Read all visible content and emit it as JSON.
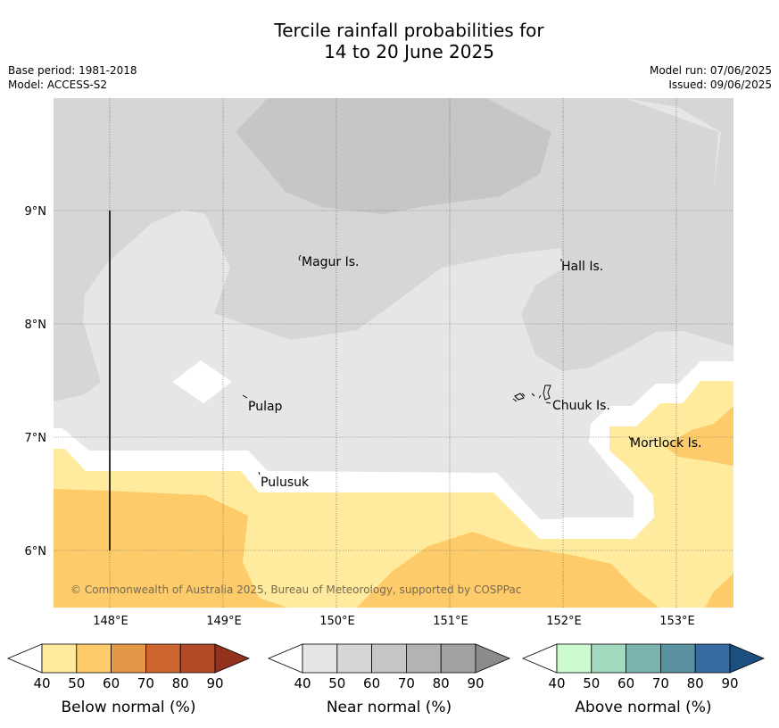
{
  "title_line1": "Tercile rainfall probabilities for",
  "title_line2": "14 to 20 June 2025",
  "meta": {
    "base_period": "Base period: 1981-2018",
    "model": "Model: ACCESS-S2",
    "model_run": "Model run: 07/06/2025",
    "issued": "Issued: 09/06/2025"
  },
  "map": {
    "lat_labels": [
      "9°N",
      "8°N",
      "7°N",
      "6°N"
    ],
    "lon_labels": [
      "148°E",
      "149°E",
      "150°E",
      "151°E",
      "152°E",
      "153°E"
    ],
    "places": [
      "Magur Is.",
      "Hall Is.",
      "Pulap",
      "Chuuk Is.",
      "Mortlock Is.",
      "Pulusuk"
    ],
    "copyright": "© Commonwealth of Australia 2025, Bureau of Meteorology, supported by COSPPac"
  },
  "legends": [
    {
      "label": "Below normal (%)",
      "ticks": [
        "40",
        "50",
        "60",
        "70",
        "80",
        "90"
      ],
      "colors": [
        "#ffffff",
        "#ffeb9e",
        "#fdcb69",
        "#e49746",
        "#cd6530",
        "#b34a28",
        "#93331f"
      ]
    },
    {
      "label": "Near normal (%)",
      "ticks": [
        "40",
        "50",
        "60",
        "70",
        "80",
        "90"
      ],
      "colors": [
        "#ffffff",
        "#e6e6e6",
        "#d6d6d6",
        "#c6c6c6",
        "#b3b3b3",
        "#a1a1a1",
        "#8c8c8c"
      ]
    },
    {
      "label": "Above normal (%)",
      "ticks": [
        "40",
        "50",
        "60",
        "70",
        "80",
        "90"
      ],
      "colors": [
        "#ffffff",
        "#ccfbd0",
        "#a3d9be",
        "#7bb3af",
        "#5a92a0",
        "#356ba0",
        "#1c4e80"
      ]
    }
  ]
}
